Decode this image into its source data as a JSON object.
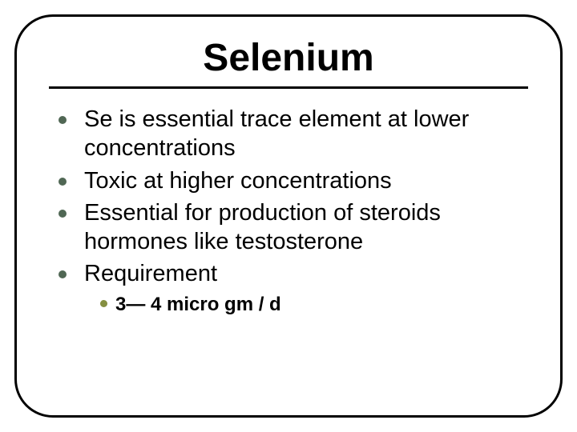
{
  "slide": {
    "title": "Selenium",
    "title_fontsize": 48,
    "title_color": "#000000",
    "frame_border_color": "#000000",
    "frame_border_width": 3,
    "frame_border_radius": 48,
    "background_color": "#ffffff",
    "bullets": [
      {
        "text": "Se is essential trace element at lower concentrations",
        "dot_color": "#506754",
        "fontsize": 29
      },
      {
        "text": "Toxic at higher concentrations",
        "dot_color": "#506754",
        "fontsize": 29
      },
      {
        "text": "Essential for production of steroids hormones like testosterone",
        "dot_color": "#506754",
        "fontsize": 29
      },
      {
        "text": "Requirement",
        "dot_color": "#506754",
        "fontsize": 29,
        "sub_bullets": [
          {
            "text": "3— 4 micro gm / d",
            "dot_color": "#858f41",
            "fontsize": 24,
            "font_weight": "bold"
          }
        ]
      }
    ]
  }
}
